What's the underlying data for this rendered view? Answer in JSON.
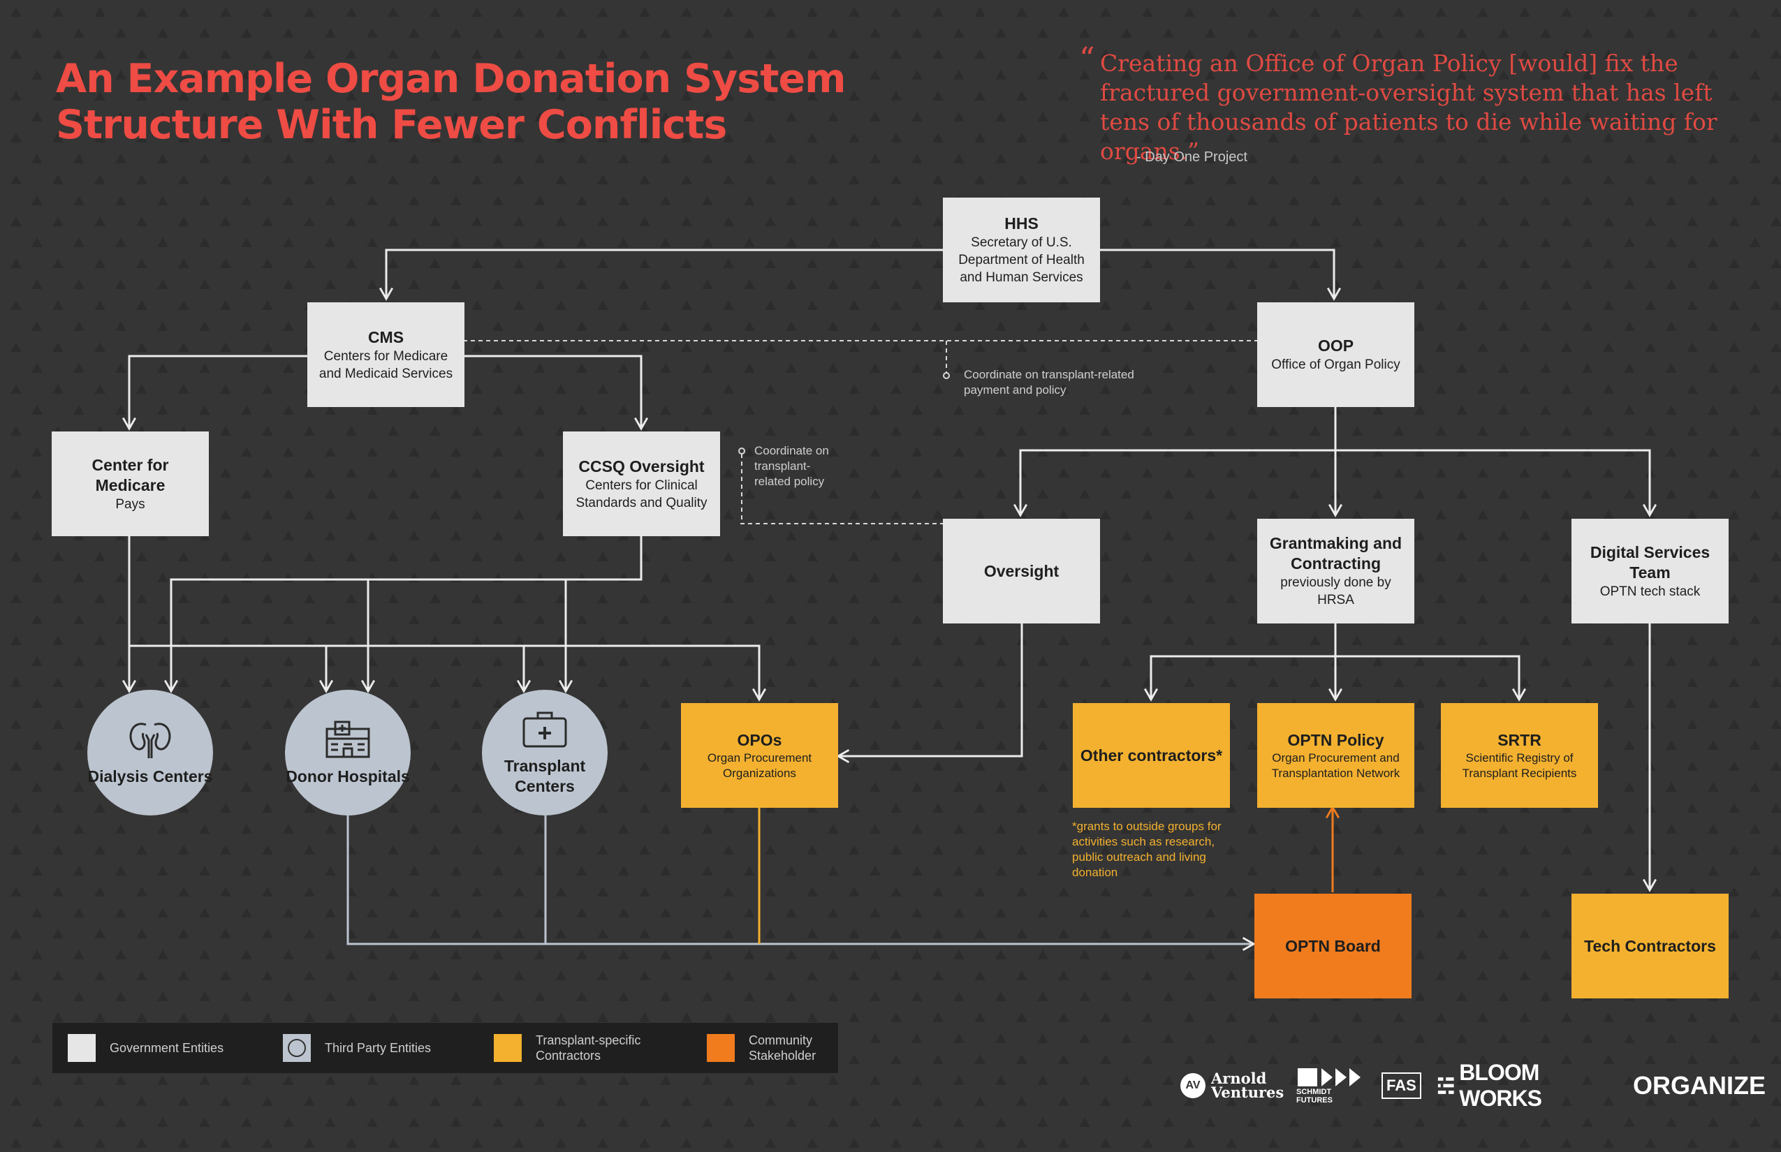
{
  "header": {
    "title_line1": "An Example Organ Donation System",
    "title_line2": "Structure With Fewer Conflicts"
  },
  "quote": {
    "mark": "“",
    "text": "Creating an Office of Organ Policy [would] fix the fractured government-oversight system that has left tens of thousands of patients to die while waiting for organs.”",
    "attribution": "- Day One Project"
  },
  "nodes": {
    "hhs": {
      "title": "HHS",
      "subtitle": "Secretary of U.S. Department of Health and Human Services"
    },
    "cms": {
      "title": "CMS",
      "subtitle": "Centers for Medicare and Medicaid Services"
    },
    "oop": {
      "title": "OOP",
      "subtitle": "Office of Organ Policy"
    },
    "medicare": {
      "title": "Center for Medicare",
      "subtitle": "Pays"
    },
    "ccsq": {
      "title": "CCSQ Oversight",
      "subtitle": "Centers for Clinical Standards and Quality"
    },
    "oversight": {
      "title": "Oversight"
    },
    "grantmaking": {
      "title": "Grantmaking and Contracting",
      "subtitle": "previously done by HRSA"
    },
    "digital": {
      "title": "Digital Services Team",
      "subtitle": "OPTN tech stack"
    },
    "dialysis": {
      "title": "Dialysis Centers",
      "icon": "kidneys-icon"
    },
    "donor": {
      "title": "Donor Hospitals",
      "icon": "hospital-icon"
    },
    "transplant": {
      "title": "Transplant Centers",
      "icon": "medical-kit-icon"
    },
    "opos": {
      "title": "OPOs",
      "subtitle": "Organ Procurement Organizations"
    },
    "other": {
      "title": "Other contractors*"
    },
    "optn_policy": {
      "title": "OPTN Policy",
      "subtitle": "Organ Procurement and Transplantation Network"
    },
    "srtr": {
      "title": "SRTR",
      "subtitle": "Scientific Registry of Transplant Recipients"
    },
    "optn_board": {
      "title": "OPTN Board"
    },
    "tech": {
      "title": "Tech Contractors"
    }
  },
  "notes": {
    "coordinate_payment": "Coordinate on transplant-related payment and policy",
    "coordinate_policy": "Coordinate on transplant-related policy",
    "grants": "*grants to outside groups for activities such as research, public outreach and living donation"
  },
  "legend": [
    {
      "label": "Government Entities",
      "color": "#e6e6e6"
    },
    {
      "label": "Third Party Entities",
      "color": "#bcc4cf",
      "icon": "icon-placeholder"
    },
    {
      "label": "Transplant-specific\nContractors",
      "color": "#f3b12f"
    },
    {
      "label": "Community\nStakeholder",
      "color": "#f07c1e"
    }
  ],
  "logos": {
    "arnold_mark": "AV",
    "arnold": "Arnold Ventures",
    "schmidt": "SCHMIDT FUTURES",
    "fas": "FAS",
    "bloom": "BLOOM WORKS",
    "organize": "ORGANIZE"
  },
  "colors": {
    "background": "#353535",
    "title": "#ee4c44",
    "government": "#e6e6e6",
    "third_party": "#bcc4cf",
    "contractor": "#f3b12f",
    "community": "#f07c1e"
  }
}
